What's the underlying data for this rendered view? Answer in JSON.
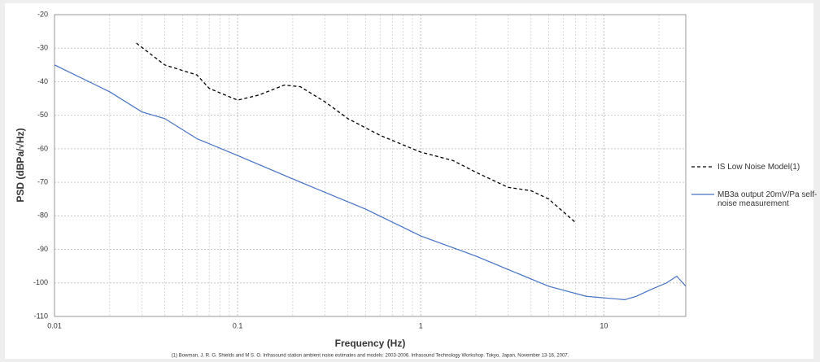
{
  "chart_data": {
    "type": "line",
    "ylabel": "PSD (dBPa/√Hz)",
    "xlabel": "Frequency (Hz)",
    "footnote": "(1) Bowman, J. R. G. Shields and M S. O. Infrasound  station ambient noise estimates and models: 2003-2006. Infrasound  Technology Workshop.  Tokyo, Japan. November 13-16, 2007.",
    "xscale": "log",
    "xlim": [
      0.01,
      28
    ],
    "xticks": [
      0.01,
      0.1,
      1,
      10
    ],
    "ylim": [
      -110,
      -20
    ],
    "yticks": [
      -110,
      -100,
      -90,
      -80,
      -70,
      -60,
      -50,
      -40,
      -30,
      -20
    ],
    "grid": true,
    "minor_grid": true,
    "legend": "right",
    "series": [
      {
        "name": "IS Low Noise Model(1)",
        "color": "#000000",
        "style": "dashed",
        "x": [
          0.028,
          0.04,
          0.06,
          0.07,
          0.1,
          0.13,
          0.18,
          0.22,
          0.3,
          0.4,
          0.6,
          1,
          1.5,
          2,
          3,
          4,
          5,
          7
        ],
        "y": [
          -28.5,
          -35,
          -38,
          -42,
          -45.5,
          -44,
          -41,
          -41.5,
          -46,
          -51,
          -56,
          -61,
          -63.5,
          -67,
          -71.5,
          -72.5,
          -75,
          -82
        ]
      },
      {
        "name": "MB3a output 20mV/Pa self-noise measurement",
        "color": "#4472c4",
        "style": "solid",
        "x": [
          0.01,
          0.02,
          0.03,
          0.04,
          0.06,
          0.1,
          0.2,
          0.3,
          0.5,
          1,
          2,
          3,
          5,
          8,
          13,
          15,
          18,
          22,
          25,
          28
        ],
        "y": [
          -35,
          -43,
          -49,
          -51,
          -57,
          -62,
          -69,
          -73,
          -78,
          -86,
          -92,
          -96,
          -101,
          -104,
          -105,
          -104,
          -102,
          -100,
          -98,
          -101
        ]
      }
    ]
  }
}
